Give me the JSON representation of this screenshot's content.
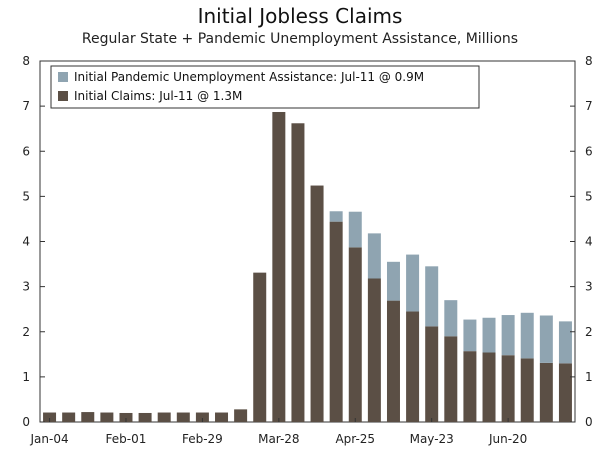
{
  "title": "Initial Jobless Claims",
  "subtitle": "Regular State + Pandemic Unemployment Assistance, Millions",
  "colors": {
    "claims": "#5b4f45",
    "pua": "#8fa4b1",
    "axis": "#333333"
  },
  "chart_data": {
    "type": "bar",
    "stacked": true,
    "title": "Initial Jobless Claims",
    "subtitle": "Regular State + Pandemic Unemployment Assistance, Millions",
    "ylim": [
      0,
      8
    ],
    "yticks": [
      0,
      1,
      2,
      3,
      4,
      5,
      6,
      7,
      8
    ],
    "grid": false,
    "legend_position": "top-left",
    "x_tick_labels": [
      "Jan-04",
      "Feb-01",
      "Feb-29",
      "Mar-28",
      "Apr-25",
      "May-23",
      "Jun-20"
    ],
    "x_tick_every": 4,
    "categories": [
      "Jan-04",
      "Jan-11",
      "Jan-18",
      "Jan-25",
      "Feb-01",
      "Feb-08",
      "Feb-15",
      "Feb-22",
      "Feb-29",
      "Mar-07",
      "Mar-14",
      "Mar-21",
      "Mar-28",
      "Apr-04",
      "Apr-11",
      "Apr-18",
      "Apr-25",
      "May-02",
      "May-09",
      "May-16",
      "May-23",
      "May-30",
      "Jun-06",
      "Jun-13",
      "Jun-20",
      "Jun-27",
      "Jul-04",
      "Jul-11"
    ],
    "series": [
      {
        "name": "Initial Claims: Jul-11 @ 1.3M",
        "values": [
          0.21,
          0.21,
          0.22,
          0.21,
          0.2,
          0.2,
          0.21,
          0.21,
          0.21,
          0.21,
          0.28,
          3.31,
          6.87,
          6.62,
          5.24,
          4.44,
          3.87,
          3.18,
          2.69,
          2.45,
          2.12,
          1.9,
          1.57,
          1.54,
          1.48,
          1.41,
          1.31,
          1.3
        ]
      },
      {
        "name": "Initial Pandemic Unemployment Assistance: Jul-11 @ 0.9M",
        "values": [
          0,
          0,
          0,
          0,
          0,
          0,
          0,
          0,
          0,
          0,
          0,
          0,
          0,
          0,
          0,
          0.23,
          0.79,
          1.0,
          0.86,
          1.26,
          1.33,
          0.8,
          0.7,
          0.77,
          0.89,
          1.01,
          1.05,
          0.93
        ]
      }
    ]
  }
}
